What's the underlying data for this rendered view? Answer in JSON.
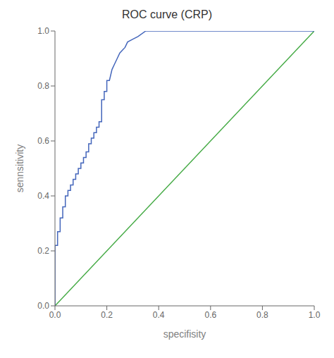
{
  "chart_data": {
    "type": "line",
    "title": "ROC curve (CRP)",
    "xlabel": "specifisity",
    "ylabel": "sennsitivity",
    "xlim": [
      0.0,
      1.0
    ],
    "ylim": [
      0.0,
      1.0
    ],
    "xticks": [
      {
        "value": 0.0,
        "label": "0.0"
      },
      0.2,
      0.4,
      0.6,
      0.8,
      {
        "value": 1.0,
        "label": "1.0"
      }
    ],
    "yticks": [
      {
        "value": 0.0,
        "label": "0.0"
      },
      0.2,
      0.4,
      0.6,
      0.8,
      {
        "value": 1.0,
        "label": "1.0"
      }
    ],
    "grid": false,
    "series": [
      {
        "color": "#44aa44",
        "x": [
          0,
          1
        ],
        "values": [
          0,
          1
        ]
      },
      {
        "color": "#4466bb",
        "x": [
          0.0,
          0.0,
          0.01,
          0.01,
          0.02,
          0.02,
          0.03,
          0.03,
          0.04,
          0.04,
          0.05,
          0.05,
          0.06,
          0.06,
          0.07,
          0.07,
          0.08,
          0.08,
          0.09,
          0.09,
          0.1,
          0.1,
          0.11,
          0.11,
          0.12,
          0.12,
          0.13,
          0.13,
          0.14,
          0.14,
          0.15,
          0.15,
          0.16,
          0.16,
          0.17,
          0.17,
          0.18,
          0.18,
          0.19,
          0.19,
          0.2,
          0.2,
          0.21,
          0.22,
          0.23,
          0.24,
          0.25,
          0.26,
          0.27,
          0.28,
          0.3,
          0.32,
          0.35,
          1.0
        ],
        "values": [
          0.0,
          0.22,
          0.22,
          0.27,
          0.27,
          0.32,
          0.32,
          0.36,
          0.36,
          0.4,
          0.4,
          0.42,
          0.42,
          0.44,
          0.44,
          0.46,
          0.46,
          0.48,
          0.48,
          0.5,
          0.5,
          0.52,
          0.52,
          0.54,
          0.54,
          0.56,
          0.56,
          0.59,
          0.59,
          0.61,
          0.61,
          0.63,
          0.63,
          0.65,
          0.65,
          0.67,
          0.67,
          0.75,
          0.75,
          0.78,
          0.78,
          0.82,
          0.82,
          0.86,
          0.88,
          0.9,
          0.92,
          0.93,
          0.94,
          0.96,
          0.97,
          0.98,
          1.0,
          1.0
        ]
      }
    ]
  }
}
